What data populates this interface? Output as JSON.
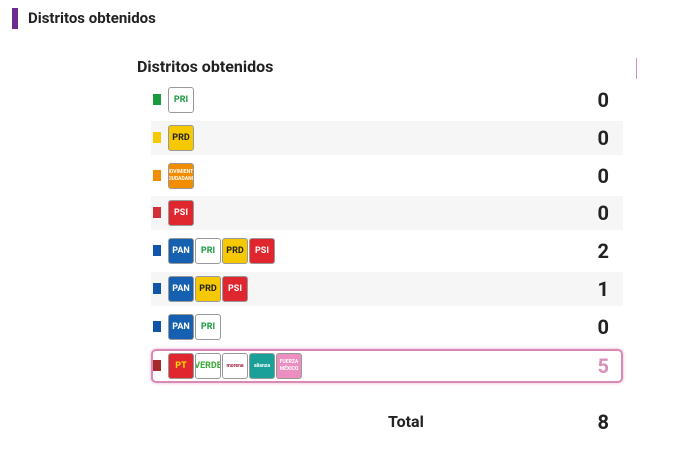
{
  "header": {
    "title": "Distritos obtenidos"
  },
  "table": {
    "title": "Distritos obtenidos",
    "rows": [
      {
        "color": "#1a9a3f",
        "parties": [
          {
            "label": "PRI",
            "bg": "#ffffff",
            "fg": "#1a9a3f"
          }
        ],
        "value": 0
      },
      {
        "color": "#f5c800",
        "parties": [
          {
            "label": "PRD",
            "bg": "#f5c800",
            "fg": "#222222"
          }
        ],
        "value": 0
      },
      {
        "color": "#f28c00",
        "parties": [
          {
            "label": "MOVIMIENTO CIUDADANO",
            "bg": "#f28c00",
            "fg": "#ffffff"
          }
        ],
        "value": 0
      },
      {
        "color": "#d32f3a",
        "parties": [
          {
            "label": "PSI",
            "bg": "#e0262e",
            "fg": "#ffffff"
          }
        ],
        "value": 0
      },
      {
        "color": "#1155a8",
        "parties": [
          {
            "label": "PAN",
            "bg": "#1560b0",
            "fg": "#ffffff"
          },
          {
            "label": "PRI",
            "bg": "#ffffff",
            "fg": "#1a9a3f"
          },
          {
            "label": "PRD",
            "bg": "#f5c800",
            "fg": "#222222"
          },
          {
            "label": "PSI",
            "bg": "#e0262e",
            "fg": "#ffffff"
          }
        ],
        "value": 2
      },
      {
        "color": "#1155a8",
        "parties": [
          {
            "label": "PAN",
            "bg": "#1560b0",
            "fg": "#ffffff"
          },
          {
            "label": "PRD",
            "bg": "#f5c800",
            "fg": "#222222"
          },
          {
            "label": "PSI",
            "bg": "#e0262e",
            "fg": "#ffffff"
          }
        ],
        "value": 1
      },
      {
        "color": "#1155a8",
        "parties": [
          {
            "label": "PAN",
            "bg": "#1560b0",
            "fg": "#ffffff"
          },
          {
            "label": "PRI",
            "bg": "#ffffff",
            "fg": "#1a9a3f"
          }
        ],
        "value": 0
      },
      {
        "color": "#a52a2a",
        "highlight": true,
        "parties": [
          {
            "label": "PT",
            "bg": "#e0262e",
            "fg": "#ffe000"
          },
          {
            "label": "VERDE",
            "bg": "#ffffff",
            "fg": "#3aa935"
          },
          {
            "label": "morena",
            "bg": "#ffffff",
            "fg": "#a0203a"
          },
          {
            "label": "alianza",
            "bg": "#1aa098",
            "fg": "#ffffff"
          },
          {
            "label": "FUERZA MÉXICO",
            "bg": "#ec8fc0",
            "fg": "#ffffff"
          }
        ],
        "value": 5
      }
    ],
    "total_label": "Total",
    "total": 8
  }
}
